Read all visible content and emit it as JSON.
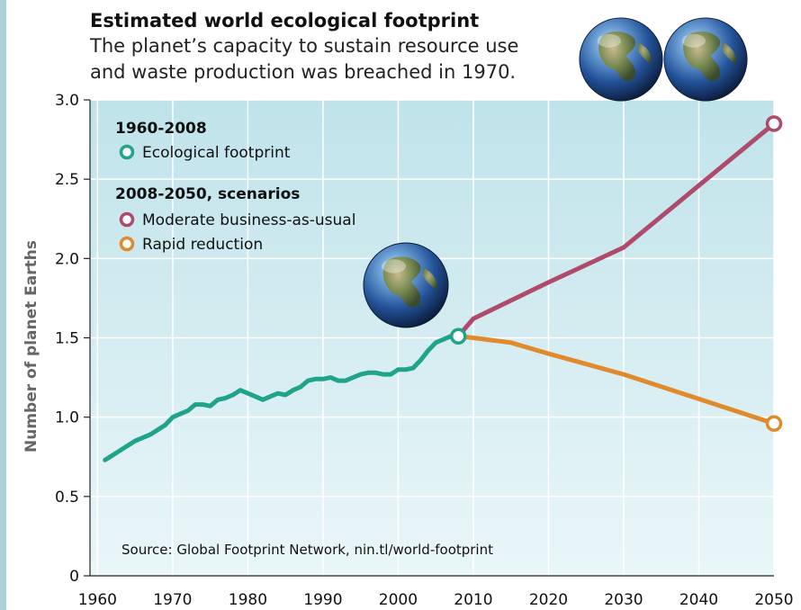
{
  "colors": {
    "footprint": "#1fa389",
    "moderate": "#b04a6a",
    "rapid": "#e08a2c",
    "plot_bg_top": "#bfe3ea",
    "plot_bg_bottom": "#eaf6f8"
  },
  "chart_data": {
    "type": "line",
    "title": "Estimated world ecological footprint",
    "subtitle": [
      "The planet’s capacity to sustain resource use",
      "and waste production was breached in 1970."
    ],
    "ylabel": "Number of planet Earths",
    "xlabel": "",
    "xlim": [
      1959,
      2050
    ],
    "ylim": [
      0,
      3.0
    ],
    "x_ticks": [
      1960,
      1970,
      1980,
      1990,
      2000,
      2010,
      2020,
      2030,
      2040,
      2050
    ],
    "y_ticks": [
      "0",
      "0.5",
      "1.0",
      "1.5",
      "2.0",
      "2.5",
      "3.0"
    ],
    "grid": true,
    "legend": {
      "placement": "top-left",
      "group1_heading": "1960-2008",
      "group2_heading": "2008-2050, scenarios",
      "entries": [
        "Ecological footprint",
        "Moderate business-as-usual",
        "Rapid reduction"
      ]
    },
    "series": [
      {
        "name": "Ecological footprint",
        "x": [
          1961,
          1962,
          1963,
          1964,
          1965,
          1966,
          1967,
          1968,
          1969,
          1970,
          1971,
          1972,
          1973,
          1974,
          1975,
          1976,
          1977,
          1978,
          1979,
          1980,
          1981,
          1982,
          1983,
          1984,
          1985,
          1986,
          1987,
          1988,
          1989,
          1990,
          1991,
          1992,
          1993,
          1994,
          1995,
          1996,
          1997,
          1998,
          1999,
          2000,
          2001,
          2002,
          2003,
          2004,
          2005,
          2006,
          2007,
          2008
        ],
        "y": [
          0.73,
          0.76,
          0.79,
          0.82,
          0.85,
          0.87,
          0.89,
          0.92,
          0.95,
          1.0,
          1.02,
          1.04,
          1.08,
          1.08,
          1.07,
          1.11,
          1.12,
          1.14,
          1.17,
          1.15,
          1.13,
          1.11,
          1.13,
          1.15,
          1.14,
          1.17,
          1.19,
          1.23,
          1.24,
          1.24,
          1.25,
          1.23,
          1.23,
          1.25,
          1.27,
          1.28,
          1.28,
          1.27,
          1.27,
          1.3,
          1.3,
          1.31,
          1.36,
          1.42,
          1.47,
          1.49,
          1.51,
          1.51
        ]
      },
      {
        "name": "Moderate business-as-usual",
        "x": [
          2008,
          2010,
          2020,
          2030,
          2050
        ],
        "y": [
          1.51,
          1.62,
          1.85,
          2.07,
          2.85
        ]
      },
      {
        "name": "Rapid reduction",
        "x": [
          2008,
          2010,
          2015,
          2020,
          2030,
          2050
        ],
        "y": [
          1.51,
          1.5,
          1.47,
          1.4,
          1.27,
          0.96
        ]
      }
    ],
    "source": "Source: Global Footprint Network, nin.tl/world-footprint"
  }
}
